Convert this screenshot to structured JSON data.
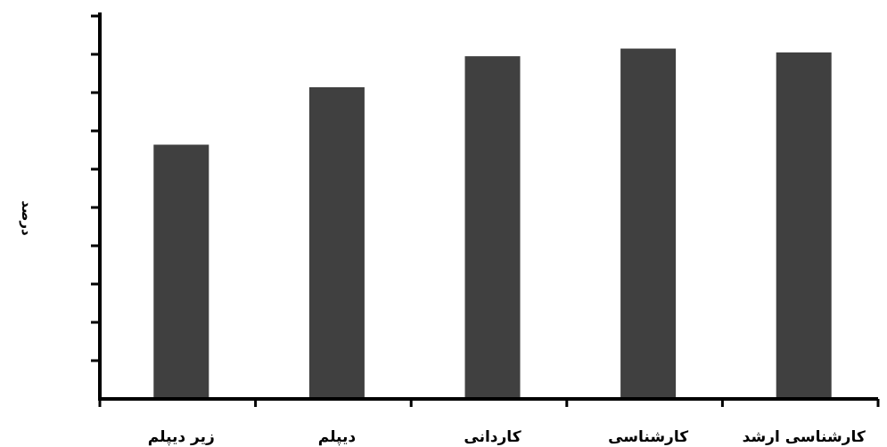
{
  "chart_data": {
    "type": "bar",
    "categories": [
      "زیر دیپلم",
      "دیپلم",
      "کاردانی",
      "کارشناسی",
      "کارشناسی ارشد"
    ],
    "values": [
      66.4,
      81.4,
      89.5,
      91.5,
      90.5
    ],
    "xlabel": "",
    "ylabel": "درصد",
    "ylim": [
      0,
      100
    ],
    "y_tick_step": 10,
    "show_tick_labels": false,
    "grid": false,
    "colors": {
      "bar": "#404040",
      "axis": "#000000"
    }
  }
}
